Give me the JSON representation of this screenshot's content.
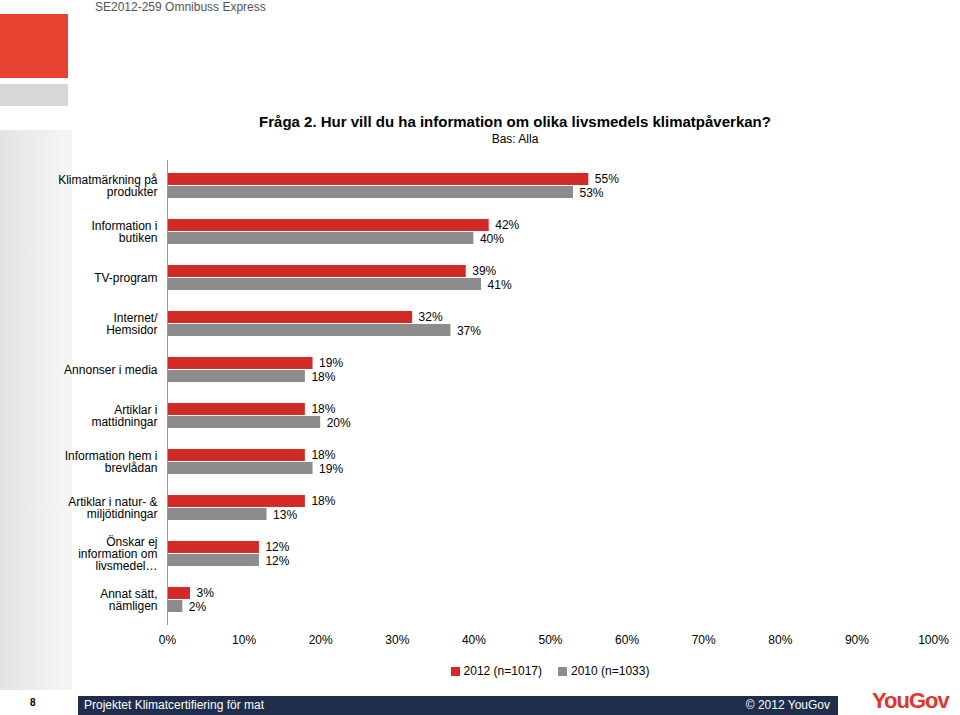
{
  "page": {
    "header": "SE2012-259 Omnibuss Express",
    "page_number": 8,
    "footer": "Projektet Klimatcertifiering för mat",
    "copyright": "© 2012 YouGov",
    "logo": "YouGov"
  },
  "chart_data": {
    "type": "bar",
    "orientation": "horizontal",
    "title": "Fråga 2. Hur vill du ha information om olika livsmedels klimatpåverkan?",
    "subtitle": "Bas: Alla",
    "categories": [
      "Klimatmärkning på produkter",
      "Information i butiken",
      "TV-program",
      "Internet/ Hemsidor",
      "Annonser i media",
      "Artiklar i mattidningar",
      "Information hem i brevlådan",
      "Artiklar i natur- & miljötidningar",
      "Önskar ej information om livsmedel…",
      "Annat sätt, nämligen"
    ],
    "series": [
      {
        "name": "2012 (n=1017)",
        "color": "#d42a27",
        "values": [
          55,
          42,
          39,
          32,
          19,
          18,
          18,
          18,
          12,
          3
        ],
        "value_labels": [
          "55%",
          "42%",
          "39%",
          "32%",
          "19%",
          "18%",
          "18%",
          "18%",
          "12%",
          "3%"
        ]
      },
      {
        "name": "2010 (n=1033)",
        "color": "#8c8c8c",
        "values": [
          53,
          40,
          41,
          37,
          18,
          20,
          19,
          13,
          12,
          2
        ],
        "value_labels": [
          "53%",
          "40%",
          "41%",
          "37%",
          "18%",
          "20%",
          "19%",
          "13%",
          "12%",
          "2%"
        ]
      }
    ],
    "xlim": [
      0,
      100
    ],
    "xticks": [
      {
        "value": 0,
        "label": "0%"
      },
      {
        "value": 10,
        "label": "10%"
      },
      {
        "value": 20,
        "label": "20%"
      },
      {
        "value": 30,
        "label": "30%"
      },
      {
        "value": 40,
        "label": "40%"
      },
      {
        "value": 50,
        "label": "50%"
      },
      {
        "value": 60,
        "label": "60%"
      },
      {
        "value": 70,
        "label": "70%"
      },
      {
        "value": 80,
        "label": "80%"
      },
      {
        "value": 90,
        "label": "90%"
      },
      {
        "value": 100,
        "label": "100%"
      }
    ],
    "grid": false,
    "data_labels": true,
    "legend": "bottom"
  }
}
